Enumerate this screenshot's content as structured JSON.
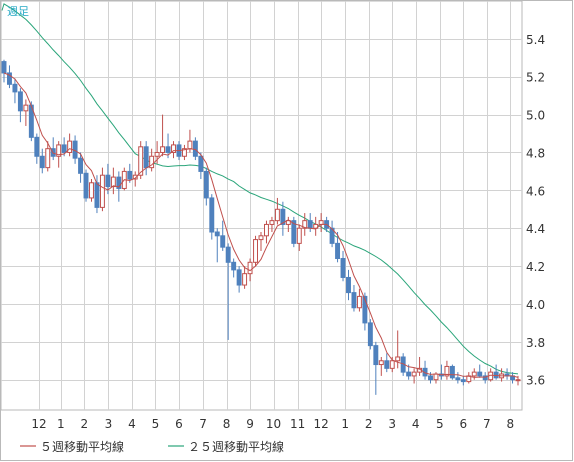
{
  "header": {
    "period_label": "週足"
  },
  "chart_data": {
    "type": "candlestick",
    "ylim": [
      3.44,
      5.6
    ],
    "y_ticks": [
      3.6,
      3.8,
      4.0,
      4.2,
      4.4,
      4.6,
      4.8,
      5.0,
      5.2,
      5.4
    ],
    "y_tick_labels": [
      "3.6",
      "3.8",
      "4.0",
      "4.2",
      "4.4",
      "4.6",
      "4.8",
      "5.0",
      "5.2",
      "5.4"
    ],
    "x_ticks": [
      {
        "label": "12",
        "index": 6.4
      },
      {
        "label": "1",
        "index": 10.4
      },
      {
        "label": "2",
        "index": 14.7
      },
      {
        "label": "3",
        "index": 19.1
      },
      {
        "label": "4",
        "index": 23.4
      },
      {
        "label": "5",
        "index": 27.7
      },
      {
        "label": "6",
        "index": 32.0
      },
      {
        "label": "7",
        "index": 36.4
      },
      {
        "label": "8",
        "index": 40.7
      },
      {
        "label": "9",
        "index": 45.0
      },
      {
        "label": "10",
        "index": 49.3
      },
      {
        "label": "11",
        "index": 53.7
      },
      {
        "label": "12",
        "index": 58.0
      },
      {
        "label": "1",
        "index": 62.4
      },
      {
        "label": "2",
        "index": 66.7
      },
      {
        "label": "3",
        "index": 71.0
      },
      {
        "label": "4",
        "index": 75.3
      },
      {
        "label": "5",
        "index": 79.7
      },
      {
        "label": "6",
        "index": 84.0
      },
      {
        "label": "7",
        "index": 88.3
      },
      {
        "label": "8",
        "index": 92.6
      }
    ],
    "candles": [
      [
        5.28,
        5.29,
        5.17,
        5.22
      ],
      [
        5.22,
        5.26,
        5.14,
        5.16
      ],
      [
        5.16,
        5.19,
        5.06,
        5.12
      ],
      [
        5.12,
        5.14,
        4.96,
        5.02
      ],
      [
        5.02,
        5.08,
        4.94,
        5.05
      ],
      [
        5.05,
        5.07,
        4.86,
        4.88
      ],
      [
        4.88,
        4.9,
        4.74,
        4.78
      ],
      [
        4.78,
        4.82,
        4.69,
        4.72
      ],
      [
        4.72,
        4.86,
        4.7,
        4.82
      ],
      [
        4.82,
        4.88,
        4.76,
        4.78
      ],
      [
        4.78,
        4.86,
        4.72,
        4.84
      ],
      [
        4.84,
        4.88,
        4.78,
        4.8
      ],
      [
        4.8,
        4.9,
        4.78,
        4.86
      ],
      [
        4.86,
        4.89,
        4.74,
        4.77
      ],
      [
        4.77,
        4.8,
        4.64,
        4.69
      ],
      [
        4.69,
        4.71,
        4.54,
        4.56
      ],
      [
        4.56,
        4.66,
        4.54,
        4.64
      ],
      [
        4.64,
        4.68,
        4.48,
        4.51
      ],
      [
        4.51,
        4.72,
        4.49,
        4.68
      ],
      [
        4.68,
        4.74,
        4.58,
        4.62
      ],
      [
        4.62,
        4.72,
        4.58,
        4.67
      ],
      [
        4.67,
        4.7,
        4.54,
        4.61
      ],
      [
        4.61,
        4.72,
        4.6,
        4.7
      ],
      [
        4.7,
        4.74,
        4.64,
        4.66
      ],
      [
        4.66,
        4.7,
        4.62,
        4.68
      ],
      [
        4.68,
        4.86,
        4.66,
        4.83
      ],
      [
        4.83,
        4.86,
        4.68,
        4.72
      ],
      [
        4.72,
        4.82,
        4.7,
        4.78
      ],
      [
        4.78,
        4.86,
        4.74,
        4.8
      ],
      [
        4.8,
        5.0,
        4.78,
        4.83
      ],
      [
        4.83,
        4.9,
        4.77,
        4.8
      ],
      [
        4.8,
        4.86,
        4.77,
        4.84
      ],
      [
        4.84,
        4.86,
        4.76,
        4.78
      ],
      [
        4.78,
        4.84,
        4.76,
        4.82
      ],
      [
        4.82,
        4.92,
        4.8,
        4.86
      ],
      [
        4.86,
        4.88,
        4.76,
        4.78
      ],
      [
        4.78,
        4.8,
        4.66,
        4.7
      ],
      [
        4.7,
        4.72,
        4.52,
        4.56
      ],
      [
        4.56,
        4.58,
        4.34,
        4.38
      ],
      [
        4.38,
        4.4,
        4.22,
        4.36
      ],
      [
        4.36,
        4.44,
        4.28,
        4.3
      ],
      [
        4.3,
        4.32,
        3.81,
        4.22
      ],
      [
        4.22,
        4.24,
        4.14,
        4.18
      ],
      [
        4.18,
        4.2,
        4.06,
        4.1
      ],
      [
        4.1,
        4.2,
        4.08,
        4.16
      ],
      [
        4.16,
        4.24,
        4.12,
        4.22
      ],
      [
        4.22,
        4.36,
        4.2,
        4.34
      ],
      [
        4.34,
        4.38,
        4.28,
        4.36
      ],
      [
        4.36,
        4.44,
        4.32,
        4.42
      ],
      [
        4.42,
        4.46,
        4.38,
        4.44
      ],
      [
        4.44,
        4.56,
        4.42,
        4.5
      ],
      [
        4.5,
        4.54,
        4.36,
        4.42
      ],
      [
        4.42,
        4.46,
        4.38,
        4.44
      ],
      [
        4.44,
        4.46,
        4.3,
        4.32
      ],
      [
        4.32,
        4.42,
        4.28,
        4.4
      ],
      [
        4.4,
        4.48,
        4.36,
        4.44
      ],
      [
        4.44,
        4.48,
        4.38,
        4.4
      ],
      [
        4.4,
        4.46,
        4.36,
        4.42
      ],
      [
        4.42,
        4.48,
        4.38,
        4.44
      ],
      [
        4.44,
        4.46,
        4.38,
        4.4
      ],
      [
        4.4,
        4.44,
        4.3,
        4.32
      ],
      [
        4.32,
        4.38,
        4.22,
        4.24
      ],
      [
        4.24,
        4.28,
        4.12,
        4.14
      ],
      [
        4.14,
        4.18,
        4.02,
        4.06
      ],
      [
        4.06,
        4.1,
        3.96,
        3.98
      ],
      [
        3.98,
        4.08,
        3.96,
        4.04
      ],
      [
        4.04,
        4.06,
        3.86,
        3.9
      ],
      [
        3.9,
        3.92,
        3.76,
        3.78
      ],
      [
        3.78,
        3.8,
        3.52,
        3.68
      ],
      [
        3.68,
        3.72,
        3.62,
        3.7
      ],
      [
        3.7,
        3.74,
        3.64,
        3.66
      ],
      [
        3.66,
        3.72,
        3.64,
        3.7
      ],
      [
        3.7,
        3.86,
        3.66,
        3.72
      ],
      [
        3.72,
        3.74,
        3.62,
        3.64
      ],
      [
        3.64,
        3.68,
        3.6,
        3.62
      ],
      [
        3.62,
        3.66,
        3.58,
        3.64
      ],
      [
        3.64,
        3.72,
        3.62,
        3.66
      ],
      [
        3.66,
        3.7,
        3.6,
        3.62
      ],
      [
        3.62,
        3.64,
        3.58,
        3.6
      ],
      [
        3.6,
        3.64,
        3.58,
        3.63
      ],
      [
        3.63,
        3.68,
        3.6,
        3.62
      ],
      [
        3.62,
        3.7,
        3.6,
        3.67
      ],
      [
        3.67,
        3.68,
        3.6,
        3.61
      ],
      [
        3.61,
        3.64,
        3.58,
        3.6
      ],
      [
        3.6,
        3.62,
        3.57,
        3.59
      ],
      [
        3.59,
        3.64,
        3.58,
        3.62
      ],
      [
        3.62,
        3.66,
        3.6,
        3.64
      ],
      [
        3.64,
        3.68,
        3.61,
        3.62
      ],
      [
        3.62,
        3.64,
        3.58,
        3.6
      ],
      [
        3.6,
        3.66,
        3.59,
        3.64
      ],
      [
        3.64,
        3.68,
        3.6,
        3.61
      ],
      [
        3.61,
        3.66,
        3.59,
        3.63
      ],
      [
        3.63,
        3.66,
        3.6,
        3.62
      ],
      [
        3.62,
        3.64,
        3.58,
        3.6
      ],
      [
        3.6,
        3.62,
        3.57,
        3.6
      ]
    ],
    "ma5_color": "#c0504d",
    "ma25_color": "#2aa57a",
    "up_color": "#c0504d",
    "down_color": "#4f81bd",
    "grid_color": "#d2d2d2",
    "legend": [
      {
        "label": "５週移動平均線",
        "color": "#c0504d"
      },
      {
        "label": "２５週移動平均線",
        "color": "#2aa57a"
      }
    ],
    "ma25_seed": 5.6
  }
}
